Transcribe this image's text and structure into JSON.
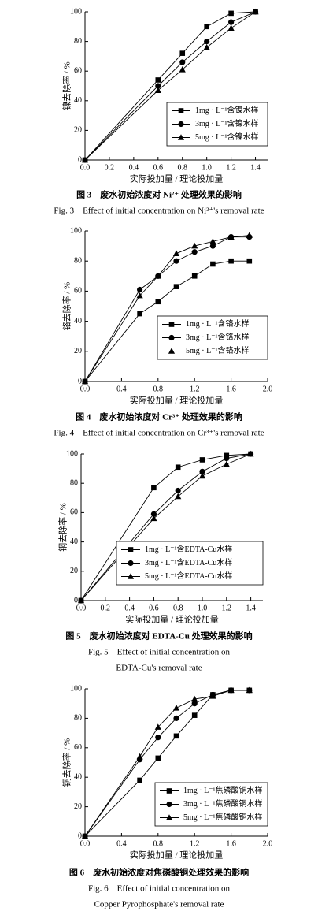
{
  "chart_data": [
    {
      "type": "line",
      "ylabel": "镍去除率 / %",
      "xlabel": "实际投加量 / 理论投加量",
      "caption_cn": "图 3　废水初始浓度对 Ni²⁺ 处理效果的影响",
      "caption_en": [
        "Fig. 3　Effect of initial concentration on Ni²⁺'s removal rate"
      ],
      "xlim": [
        0,
        1.5
      ],
      "ylim": [
        0,
        100
      ],
      "xticks": [
        {
          "value": 0,
          "label": "0.0"
        },
        0.2,
        0.4,
        0.6,
        0.8,
        {
          "value": 1,
          "label": "1.0"
        },
        1.2,
        1.4
      ],
      "yticks": [
        0,
        20,
        40,
        60,
        80,
        100
      ],
      "legend": "lower right",
      "x": [
        0,
        0.6,
        0.8,
        1.0,
        1.2,
        1.4
      ],
      "series": [
        {
          "name": "1mg · L⁻¹含镍水样",
          "color": "#000000",
          "marker": "square",
          "values": [
            0,
            54,
            72,
            90,
            99,
            100
          ]
        },
        {
          "name": "3mg · L⁻¹含镍水样",
          "color": "#000000",
          "marker": "circle",
          "values": [
            0,
            50,
            66,
            80,
            93,
            100
          ]
        },
        {
          "name": "5mg · L⁻¹含镍水样",
          "color": "#000000",
          "marker": "triangle",
          "values": [
            0,
            47,
            61,
            76,
            89,
            100
          ]
        }
      ]
    },
    {
      "type": "line",
      "ylabel": "铬去除率 / %",
      "xlabel": "实际投加量 / 理论投加量",
      "caption_cn": "图 4　废水初始浓度对 Cr³⁺ 处理效果的影响",
      "caption_en": [
        "Fig. 4　Effect of initial concentration on Cr³⁺'s removal rate"
      ],
      "xlim": [
        0,
        2
      ],
      "ylim": [
        0,
        100
      ],
      "xticks": [
        {
          "value": 0,
          "label": "0.0"
        },
        0.4,
        0.8,
        1.2,
        1.6,
        {
          "value": 2,
          "label": "2.0"
        }
      ],
      "yticks": [
        0,
        20,
        40,
        60,
        80,
        100
      ],
      "legend": "lower right",
      "x": [
        0,
        0.6,
        0.8,
        1.0,
        1.2,
        1.4,
        1.6,
        1.8
      ],
      "series": [
        {
          "name": "1mg · L⁻¹含铬水样",
          "color": "#000000",
          "marker": "square",
          "values": [
            0,
            45,
            53,
            63,
            70,
            78,
            80,
            80
          ]
        },
        {
          "name": "3mg · L⁻¹含铬水样",
          "color": "#000000",
          "marker": "circle",
          "values": [
            0,
            61,
            70,
            80,
            86,
            90,
            96,
            96
          ]
        },
        {
          "name": "5mg · L⁻¹含铬水样",
          "color": "#000000",
          "marker": "triangle",
          "values": [
            0,
            57,
            70,
            85,
            90,
            93,
            96,
            97
          ]
        }
      ]
    },
    {
      "type": "line",
      "ylabel": "铜去除率 / %",
      "xlabel": "实际投加量 / 理论投加量",
      "caption_cn": "图 5　废水初始浓度对 EDTA-Cu 处理效果的影响",
      "caption_en": [
        "Fig. 5　Effect of initial concentration on",
        "EDTA-Cu's removal rate"
      ],
      "xlim": [
        0,
        1.5
      ],
      "ylim": [
        0,
        100
      ],
      "xticks": [
        {
          "value": 0,
          "label": "0.0"
        },
        0.2,
        0.4,
        0.6,
        0.8,
        {
          "value": 1,
          "label": "1.0"
        },
        1.2,
        1.4
      ],
      "yticks": [
        0,
        20,
        40,
        60,
        80,
        100
      ],
      "legend": "lower right",
      "x": [
        0,
        0.6,
        0.8,
        1.0,
        1.2,
        1.4
      ],
      "series": [
        {
          "name": "1mg · L⁻¹含EDTA-Cu水样",
          "color": "#000000",
          "marker": "square",
          "values": [
            0,
            77,
            91,
            96,
            99,
            100
          ]
        },
        {
          "name": "3mg · L⁻¹含EDTA-Cu水样",
          "color": "#000000",
          "marker": "circle",
          "values": [
            0,
            59,
            75,
            88,
            97,
            100
          ]
        },
        {
          "name": "5mg · L⁻¹含EDTA-Cu水样",
          "color": "#000000",
          "marker": "triangle",
          "values": [
            0,
            56,
            71,
            85,
            93,
            100
          ]
        }
      ]
    },
    {
      "type": "line",
      "ylabel": "铜去除率 / %",
      "xlabel": "实际投加量 / 理论投加量",
      "caption_cn": "图 6　废水初始浓度对焦磷酸铜处理效果的影响",
      "caption_en": [
        "Fig. 6　Effect of initial concentration on",
        "Copper Pyrophosphate's removal rate"
      ],
      "xlim": [
        0,
        2
      ],
      "ylim": [
        0,
        100
      ],
      "xticks": [
        {
          "value": 0,
          "label": "0.0"
        },
        0.4,
        0.8,
        1.2,
        1.6,
        {
          "value": 2,
          "label": "2.0"
        }
      ],
      "yticks": [
        0,
        20,
        40,
        60,
        80,
        100
      ],
      "legend": "lower right",
      "x": [
        0,
        0.6,
        0.8,
        1.0,
        1.2,
        1.4,
        1.6,
        1.8
      ],
      "series": [
        {
          "name": "1mg · L⁻¹焦磷酸铜水样",
          "color": "#000000",
          "marker": "square",
          "values": [
            0,
            38,
            53,
            68,
            82,
            96,
            99,
            99
          ]
        },
        {
          "name": "3mg · L⁻¹焦磷酸铜水样",
          "color": "#000000",
          "marker": "circle",
          "values": [
            0,
            52,
            67,
            80,
            90,
            96,
            99,
            99
          ]
        },
        {
          "name": "5mg · L⁻¹焦磷酸铜水样",
          "color": "#000000",
          "marker": "triangle",
          "values": [
            0,
            54,
            74,
            87,
            93,
            95,
            99,
            99
          ]
        }
      ]
    }
  ]
}
